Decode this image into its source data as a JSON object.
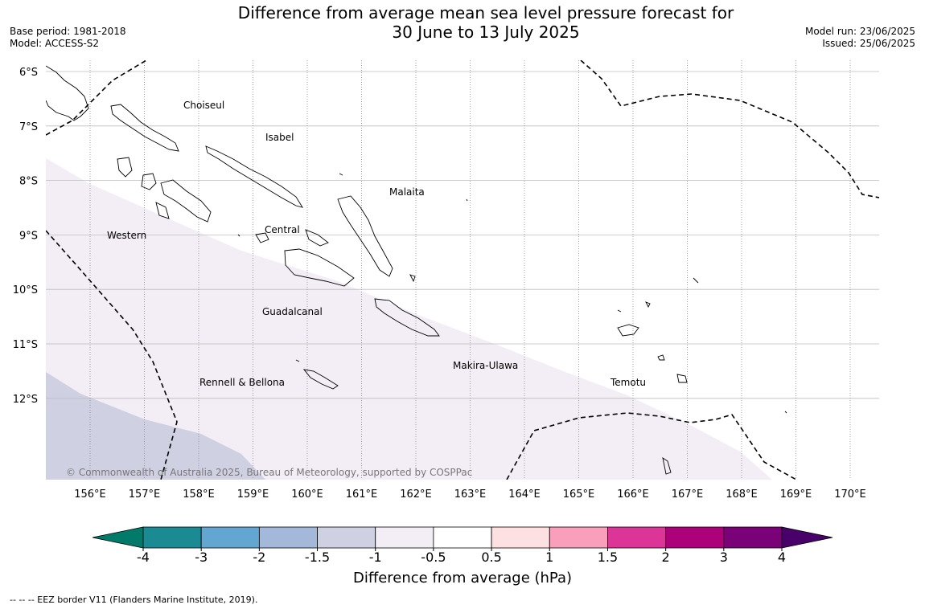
{
  "header": {
    "title_line1": "Difference from average mean sea level pressure forecast for",
    "title_line2": "30 June to 13 July 2025",
    "base_period": "Base period: 1981-2018",
    "model": "Model: ACCESS-S2",
    "model_run": "Model run: 23/06/2025",
    "issued": "Issued: 25/06/2025"
  },
  "map": {
    "lat_labels": [
      "6°S",
      "7°S",
      "8°S",
      "9°S",
      "10°S",
      "11°S",
      "12°S"
    ],
    "lon_labels": [
      "156°E",
      "157°E",
      "158°E",
      "159°E",
      "160°E",
      "161°E",
      "162°E",
      "163°E",
      "164°E",
      "165°E",
      "166°E",
      "167°E",
      "168°E",
      "169°E",
      "170°E"
    ],
    "region_labels": {
      "choiseul": "Choiseul",
      "isabel": "Isabel",
      "malaita": "Malaita",
      "central": "Central",
      "western": "Western",
      "guadalcanal": "Guadalcanal",
      "makira": "Makira-Ulawa",
      "rennell": "Rennell & Bellona",
      "temotu": "Temotu"
    },
    "copyright": "© Commonwealth of Australia 2025, Bureau of Meteorology, supported by COSPPac",
    "anomaly_fill_colors": {
      "band_minus_0_5_to_minus_1": "#f3edf5",
      "band_minus_1_to_minus_1_5": "#d0d0e3"
    }
  },
  "colorbar": {
    "tick_labels": [
      "-4",
      "-3",
      "-2",
      "-1.5",
      "-1",
      "-0.5",
      "0.5",
      "1",
      "1.5",
      "2",
      "3",
      "4"
    ],
    "colors": [
      "#1b8a92",
      "#63a6d1",
      "#a4b9d9",
      "#d0d0e3",
      "#f3edf5",
      "#ffffff",
      "#fde0e1",
      "#f99fbc",
      "#dc3597",
      "#ad007b",
      "#7a0177"
    ],
    "under_color": "#017a69",
    "over_color": "#49006a",
    "title": "Difference from average (hPa)"
  },
  "footnote": "--  --  -- EEZ border V11 (Flanders Marine Institute, 2019)."
}
